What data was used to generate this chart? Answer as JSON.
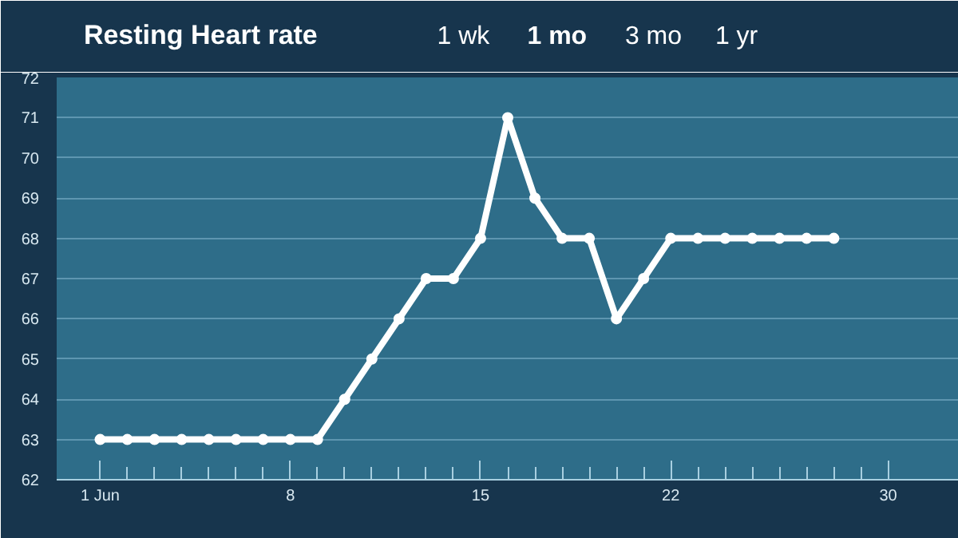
{
  "chart_data": {
    "type": "line",
    "title": "Resting Heart rate",
    "annotations": [
      "1 wk",
      "1 mo",
      "3 mo",
      "1 yr"
    ],
    "x": [
      1,
      2,
      3,
      4,
      5,
      6,
      7,
      8,
      9,
      10,
      11,
      12,
      13,
      14,
      15,
      16,
      17,
      18,
      19,
      20,
      21,
      22,
      23,
      24,
      25,
      26,
      27,
      28
    ],
    "series": [
      {
        "color": "#ffffff",
        "values": [
          63,
          63,
          63,
          63,
          63,
          63,
          63,
          63,
          63,
          64,
          65,
          66,
          67,
          67,
          68,
          71,
          69,
          68,
          68,
          66,
          67,
          68,
          68,
          68,
          68,
          68,
          68,
          68
        ]
      }
    ],
    "xlim": [
      -0.6,
      32.6
    ],
    "ylim": [
      62,
      72
    ],
    "xticks": [
      {
        "value": 1,
        "label": "1 Jun"
      },
      8,
      15,
      22,
      30
    ],
    "yticks": [
      62,
      63,
      64,
      65,
      66,
      67,
      68,
      69,
      70,
      71,
      72
    ],
    "grid": "y",
    "marker": "circle",
    "line_style": "solid"
  }
}
